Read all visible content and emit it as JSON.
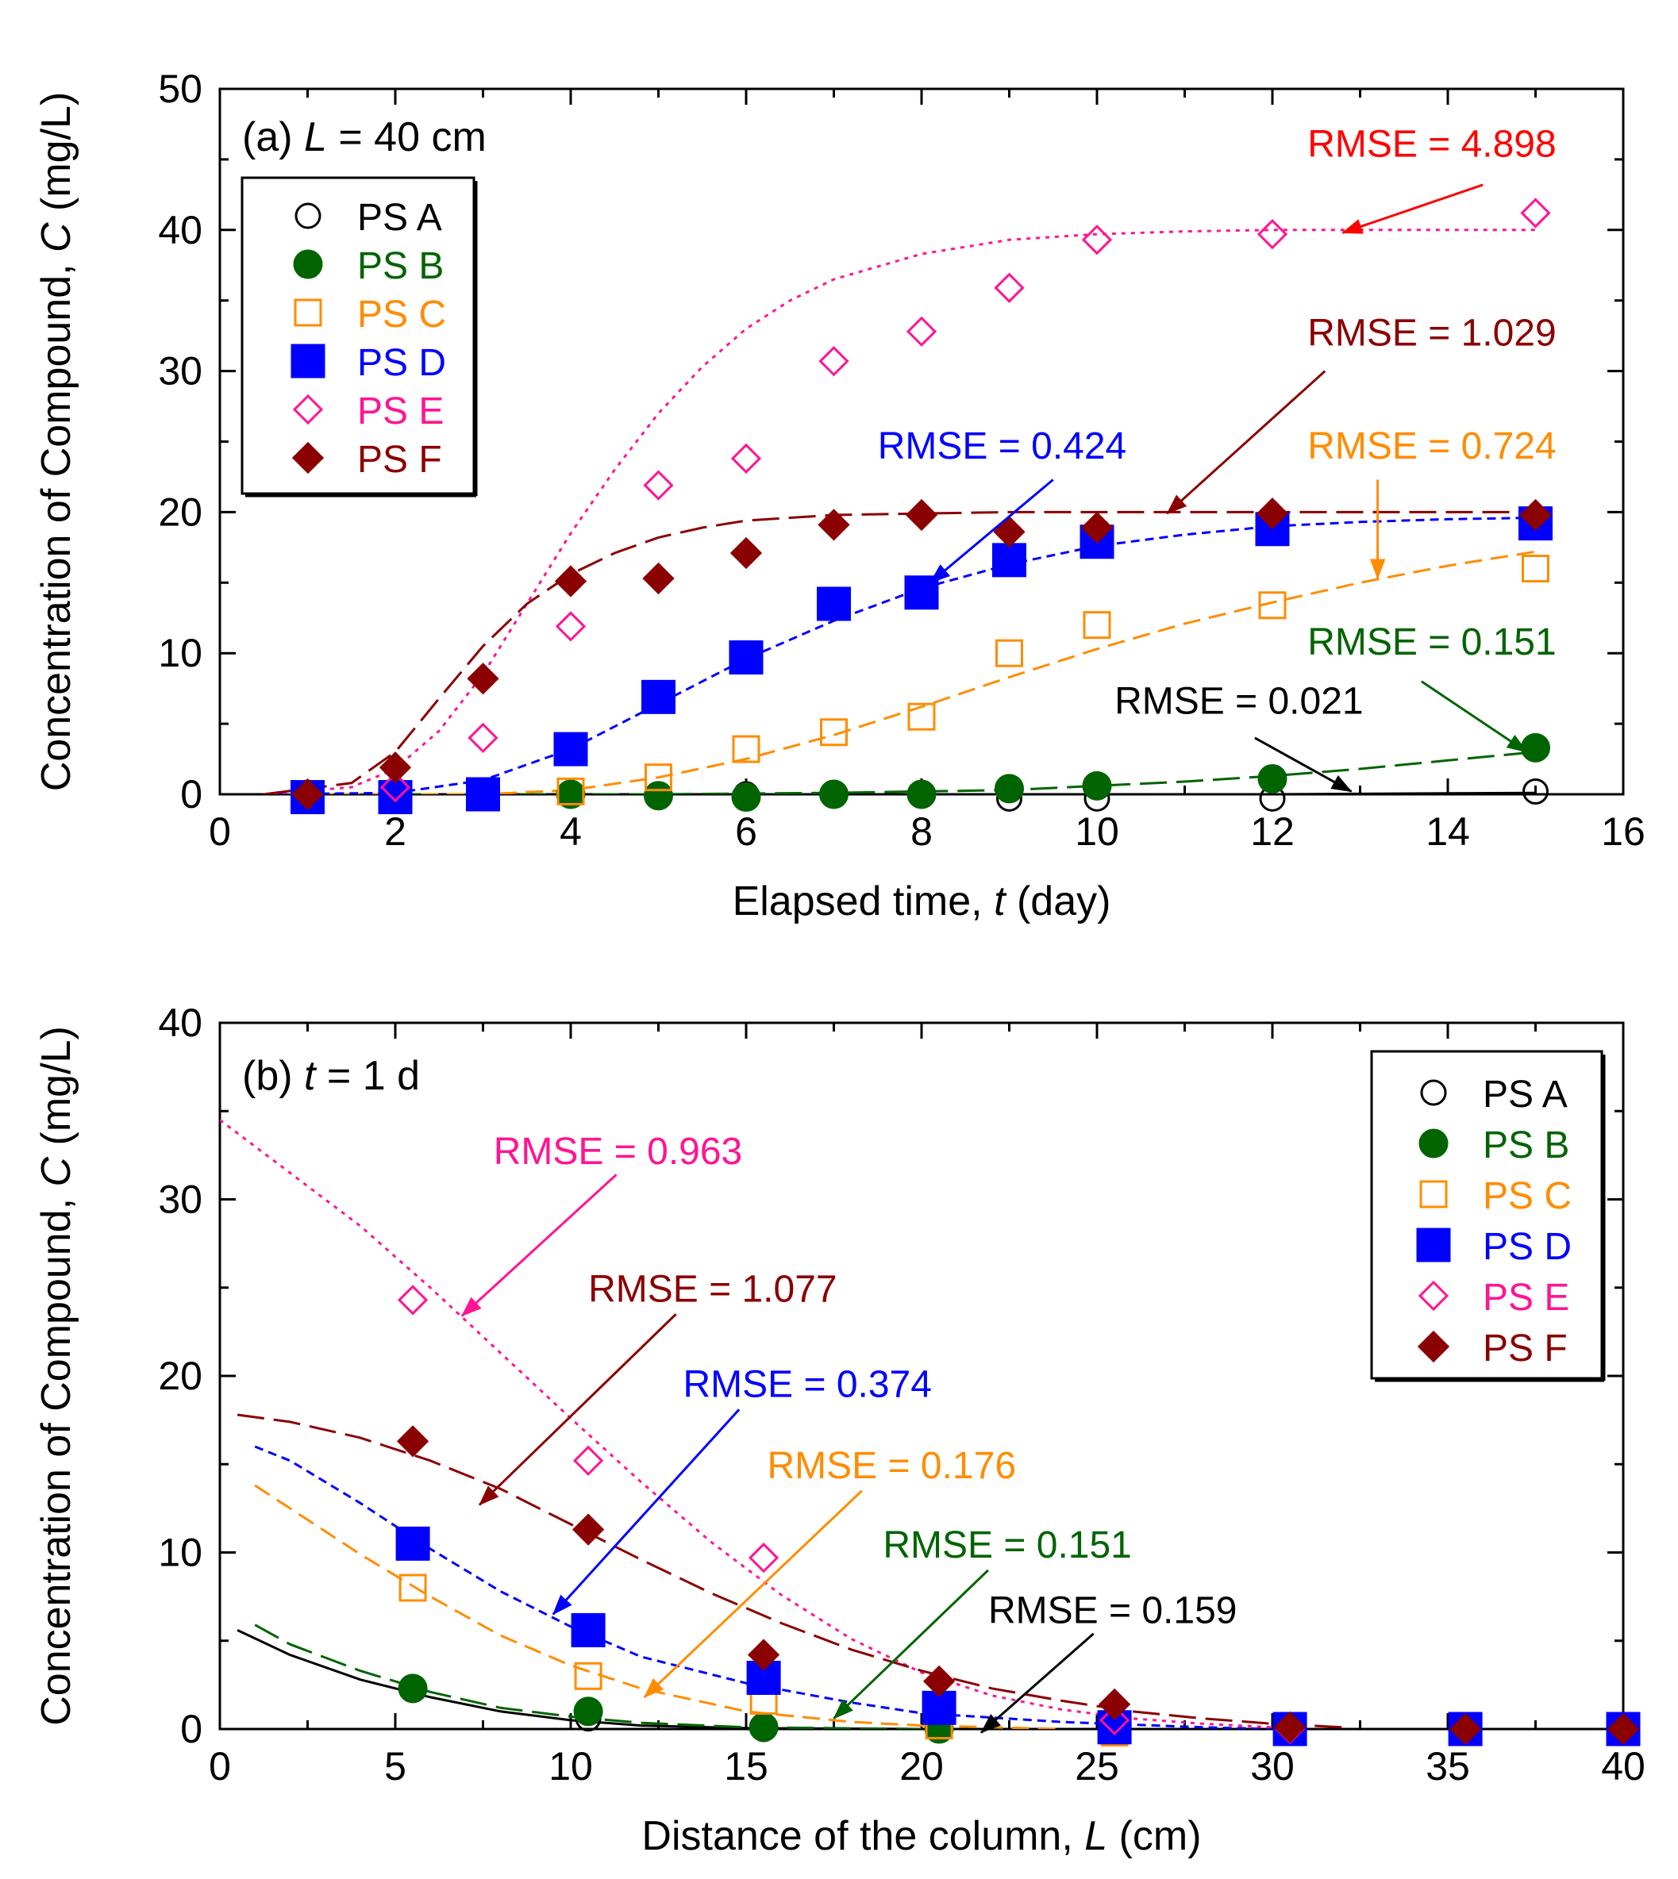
{
  "chart_data": [
    {
      "type": "line",
      "panel_label": "(a)",
      "title_var": "L",
      "title_rest": " = 40 cm",
      "xlabel_pre": "Elapsed time, ",
      "xlabel_var": "t",
      "xlabel_post": " (day)",
      "ylabel_pre": "Concentration of Compound,  ",
      "ylabel_var": "C",
      "ylabel_post": " (mg/L)",
      "xlim": [
        0,
        16
      ],
      "ylim": [
        0,
        50
      ],
      "xticks": [
        0,
        2,
        4,
        6,
        8,
        10,
        12,
        14,
        16
      ],
      "yticks": [
        0,
        10,
        20,
        30,
        40,
        50
      ],
      "legend_position": "top-left",
      "series": [
        {
          "name": "PS A",
          "marker": "circle-open",
          "color": "#000000",
          "x": [
            1,
            2,
            3,
            4,
            5,
            6,
            7,
            8,
            9,
            10,
            12,
            15
          ],
          "y": [
            0,
            0,
            0,
            0,
            0,
            0,
            0,
            0,
            -0.3,
            -0.3,
            -0.3,
            0.2
          ],
          "fit": {
            "dash": "solid",
            "x": [
              0.5,
              4,
              8,
              12,
              15
            ],
            "y": [
              0,
              0,
              0,
              0,
              0.1
            ]
          }
        },
        {
          "name": "PS B",
          "marker": "circle-filled",
          "color": "#006400",
          "x": [
            1,
            2,
            3,
            4,
            5,
            6,
            7,
            8,
            9,
            10,
            12,
            15
          ],
          "y": [
            0,
            0,
            0,
            0,
            -0.1,
            -0.2,
            0,
            0,
            0.4,
            0.6,
            1.1,
            3.3
          ],
          "fit": {
            "dash": "long",
            "x": [
              0.5,
              3,
              5,
              7,
              8,
              9,
              10,
              11,
              12,
              13,
              14,
              15
            ],
            "y": [
              0,
              0,
              0,
              0.1,
              0.2,
              0.3,
              0.6,
              0.9,
              1.3,
              1.8,
              2.4,
              3.0
            ]
          }
        },
        {
          "name": "PS C",
          "marker": "square-open",
          "color": "#FF8C00",
          "x": [
            1,
            2,
            3,
            4,
            5,
            6,
            7,
            8,
            9,
            10,
            12,
            15
          ],
          "y": [
            0,
            0,
            0,
            0.2,
            1.2,
            3.2,
            4.4,
            5.5,
            10,
            12,
            13.4,
            16
          ],
          "fit": {
            "dash": "medium",
            "x": [
              0.5,
              3,
              4,
              5,
              6,
              7,
              8,
              9,
              10,
              11,
              12,
              13,
              14,
              15
            ],
            "y": [
              0,
              0,
              0.3,
              1.2,
              2.5,
              4.2,
              6.2,
              8.3,
              10.3,
              12.1,
              13.6,
              15,
              16.2,
              17.2
            ]
          }
        },
        {
          "name": "PS D",
          "marker": "square-filled",
          "color": "#0000FF",
          "x": [
            1,
            2,
            3,
            4,
            5,
            6,
            7,
            8,
            9,
            10,
            12,
            15
          ],
          "y": [
            -0.2,
            -0.2,
            0,
            3.2,
            6.9,
            9.7,
            13.5,
            14.3,
            16.6,
            17.9,
            18.8,
            19.2
          ],
          "fit": {
            "dash": "short",
            "x": [
              0.5,
              2,
              3,
              4,
              5,
              6,
              7,
              8,
              9,
              10,
              11,
              12,
              13,
              14,
              15
            ],
            "y": [
              0,
              0.1,
              1.0,
              3.2,
              6.4,
              9.6,
              12.3,
              14.6,
              16.3,
              17.6,
              18.4,
              19.0,
              19.3,
              19.5,
              19.6
            ]
          }
        },
        {
          "name": "PS E",
          "marker": "diamond-open",
          "color": "#FF1493",
          "x": [
            1,
            2,
            3,
            4,
            5,
            6,
            7,
            8,
            9,
            10,
            12,
            15
          ],
          "y": [
            0,
            0.5,
            4,
            11.9,
            21.9,
            23.8,
            30.7,
            32.8,
            35.9,
            39.3,
            39.7,
            41.2
          ],
          "fit": {
            "dash": "dotted",
            "x": [
              0.5,
              1.5,
              2,
              2.5,
              3,
              3.5,
              4,
              4.5,
              5,
              5.5,
              6,
              6.5,
              7,
              8,
              9,
              10,
              11,
              12,
              13,
              14,
              15
            ],
            "y": [
              0,
              0.5,
              1.8,
              4.5,
              8.5,
              13.5,
              18.5,
              23,
              27,
              30.3,
              33,
              35,
              36.5,
              38.3,
              39.3,
              39.7,
              39.9,
              40,
              40,
              40,
              40
            ]
          }
        },
        {
          "name": "PS F",
          "marker": "diamond-filled",
          "color": "#8B0000",
          "x": [
            1,
            2,
            3,
            4,
            5,
            6,
            7,
            8,
            9,
            10,
            12,
            15
          ],
          "y": [
            0,
            1.9,
            8.2,
            15.1,
            15.3,
            17.1,
            19.1,
            19.8,
            18.6,
            18.9,
            19.9,
            19.8
          ],
          "fit": {
            "dash": "long",
            "x": [
              0.5,
              1.5,
              2,
              2.5,
              3,
              3.5,
              4,
              4.5,
              5,
              5.5,
              6,
              7,
              8,
              9,
              10,
              12,
              15
            ],
            "y": [
              0,
              0.8,
              3.0,
              6.8,
              10.5,
              13.5,
              15.6,
              17.1,
              18.2,
              18.9,
              19.4,
              19.8,
              19.9,
              20,
              20,
              20,
              20
            ]
          }
        }
      ],
      "annotations": [
        {
          "text": "RMSE = 4.898",
          "color": "#FF0000",
          "label_at": [
            12.4,
            45.2
          ],
          "tip": [
            12.8,
            39.8
          ],
          "tail": [
            14.4,
            43.2
          ]
        },
        {
          "text": "RMSE = 1.029",
          "color": "#8B0000",
          "label_at": [
            12.4,
            31.8
          ],
          "tip": [
            10.8,
            19.9
          ],
          "tail": [
            12.6,
            30.0
          ]
        },
        {
          "text": "RMSE = 0.424",
          "color": "#0000FF",
          "label_at": [
            7.5,
            23.8
          ],
          "tip": [
            8.1,
            15.0
          ],
          "tail": [
            9.5,
            22.3
          ]
        },
        {
          "text": "RMSE = 0.724",
          "color": "#FF8C00",
          "label_at": [
            12.4,
            23.8
          ],
          "tip": [
            13.2,
            15.3
          ],
          "tail": [
            13.2,
            22.3
          ]
        },
        {
          "text": "RMSE = 0.151",
          "color": "#006400",
          "label_at": [
            12.4,
            9.9
          ],
          "tip": [
            14.9,
            3.0
          ],
          "tail": [
            13.7,
            8.0
          ]
        },
        {
          "text": "RMSE = 0.021",
          "color": "#000000",
          "label_at": [
            10.2,
            5.7
          ],
          "tip": [
            12.9,
            0.2
          ],
          "tail": [
            11.8,
            4.0
          ]
        }
      ]
    },
    {
      "type": "line",
      "panel_label": "(b)",
      "title_var": "t",
      "title_rest": " = 1 d",
      "xlabel_pre": "Distance of the column, ",
      "xlabel_var": "L",
      "xlabel_post": " (cm)",
      "ylabel_pre": "Concentration of Compound,  ",
      "ylabel_var": "C",
      "ylabel_post": " (mg/L)",
      "xlim": [
        0,
        40
      ],
      "ylim": [
        0,
        40
      ],
      "xticks": [
        0,
        5,
        10,
        15,
        20,
        25,
        30,
        35,
        40
      ],
      "yticks": [
        0,
        10,
        20,
        30,
        40
      ],
      "legend_position": "top-right",
      "series": [
        {
          "name": "PS A",
          "marker": "circle-open",
          "color": "#000000",
          "x": [
            5.5,
            10.5,
            15.5,
            20.5,
            25.5,
            30.5,
            35.5,
            40
          ],
          "y": [
            2.3,
            0.6,
            0,
            0,
            0,
            0,
            0,
            0
          ],
          "fit": {
            "dash": "solid",
            "x": [
              0.5,
              2,
              4,
              6,
              8,
              10,
              12,
              15,
              20
            ],
            "y": [
              5.6,
              4.2,
              2.8,
              1.8,
              1.0,
              0.5,
              0.2,
              0.05,
              0
            ]
          }
        },
        {
          "name": "PS B",
          "marker": "circle-filled",
          "color": "#006400",
          "x": [
            5.5,
            10.5,
            15.5,
            20.5,
            25.5,
            30.5,
            35.5,
            40
          ],
          "y": [
            2.3,
            1.0,
            0.1,
            0,
            0,
            0,
            0,
            0
          ],
          "fit": {
            "dash": "long",
            "x": [
              1,
              2,
              4,
              6,
              8,
              10,
              12,
              15,
              20
            ],
            "y": [
              5.9,
              4.8,
              3.3,
              2.1,
              1.2,
              0.7,
              0.35,
              0.1,
              0
            ]
          }
        },
        {
          "name": "PS C",
          "marker": "square-open",
          "color": "#FF8C00",
          "x": [
            5.5,
            10.5,
            15.5,
            20.5,
            25.5,
            30.5,
            35.5,
            40
          ],
          "y": [
            8,
            3,
            1.6,
            0.2,
            -0.2,
            0,
            0,
            0
          ],
          "fit": {
            "dash": "medium",
            "x": [
              1,
              2,
              4,
              6,
              8,
              10,
              12,
              15,
              18,
              20,
              24
            ],
            "y": [
              13.8,
              12.5,
              9.9,
              7.5,
              5.3,
              3.6,
              2.3,
              1.0,
              0.4,
              0.2,
              0
            ]
          }
        },
        {
          "name": "PS D",
          "marker": "square-filled",
          "color": "#0000FF",
          "x": [
            5.5,
            10.5,
            15.5,
            20.5,
            25.5,
            30.5,
            35.5,
            40
          ],
          "y": [
            10.5,
            5.6,
            2.9,
            1.2,
            0.1,
            0,
            0,
            0
          ],
          "fit": {
            "dash": "short",
            "x": [
              1,
              2,
              4,
              6,
              8,
              10,
              12,
              15,
              18,
              20,
              24,
              28,
              30
            ],
            "y": [
              16,
              15.2,
              12.8,
              10.2,
              7.8,
              5.8,
              4.1,
              2.6,
              1.5,
              0.9,
              0.4,
              0.1,
              0
            ]
          }
        },
        {
          "name": "PS E",
          "marker": "diamond-open",
          "color": "#FF1493",
          "x": [
            5.5,
            10.5,
            15.5,
            20.5,
            25.5,
            30.5,
            35.5,
            40
          ],
          "y": [
            24.3,
            15.2,
            9.7,
            2.7,
            0.5,
            0,
            0,
            0
          ],
          "fit": {
            "dash": "dotted",
            "x": [
              0,
              2,
              4,
              6,
              8,
              10,
              12,
              14,
              16,
              18,
              20,
              22,
              24,
              26,
              28,
              30
            ],
            "y": [
              34.5,
              31.5,
              28.5,
              25,
              21.3,
              17.6,
              14,
              10.6,
              7.6,
              5.1,
              3.2,
              1.9,
              1.1,
              0.6,
              0.3,
              0.1
            ]
          }
        },
        {
          "name": "PS F",
          "marker": "diamond-filled",
          "color": "#8B0000",
          "x": [
            5.5,
            10.5,
            15.5,
            20.5,
            25.5,
            30.5,
            35.5,
            40
          ],
          "y": [
            16.3,
            11.3,
            4.2,
            2.7,
            1.4,
            0.1,
            0,
            0
          ],
          "fit": {
            "dash": "long",
            "x": [
              0.5,
              2,
              4,
              6,
              8,
              10,
              12,
              14,
              16,
              18,
              20,
              22,
              24,
              26,
              28,
              30,
              32
            ],
            "y": [
              17.8,
              17.4,
              16.5,
              15.2,
              13.6,
              11.6,
              9.6,
              7.7,
              6.0,
              4.5,
              3.3,
              2.3,
              1.6,
              1.0,
              0.6,
              0.3,
              0.1
            ]
          }
        }
      ],
      "annotations": [
        {
          "text": "RMSE = 0.963",
          "color": "#FF1493",
          "label_at": [
            7.8,
            32.0
          ],
          "tip": [
            6.9,
            23.4
          ],
          "tail": [
            11.3,
            31.4
          ]
        },
        {
          "text": "RMSE = 1.077",
          "color": "#8B0000",
          "label_at": [
            10.5,
            24.2
          ],
          "tip": [
            7.4,
            12.7
          ],
          "tail": [
            13.0,
            23.5
          ]
        },
        {
          "text": "RMSE = 0.374",
          "color": "#0000FF",
          "label_at": [
            13.2,
            18.8
          ],
          "tip": [
            9.5,
            6.5
          ],
          "tail": [
            14.8,
            18.1
          ]
        },
        {
          "text": "RMSE = 0.176",
          "color": "#FF8C00",
          "label_at": [
            15.6,
            14.2
          ],
          "tip": [
            12.1,
            1.8
          ],
          "tail": [
            18.3,
            13.5
          ]
        },
        {
          "text": "RMSE = 0.151",
          "color": "#006400",
          "label_at": [
            18.9,
            9.7
          ],
          "tip": [
            17.5,
            0.6
          ],
          "tail": [
            21.9,
            9.0
          ]
        },
        {
          "text": "RMSE = 0.159",
          "color": "#000000",
          "label_at": [
            21.9,
            6.0
          ],
          "tip": [
            21.7,
            -0.2
          ],
          "tail": [
            24.9,
            5.4
          ]
        }
      ]
    }
  ]
}
